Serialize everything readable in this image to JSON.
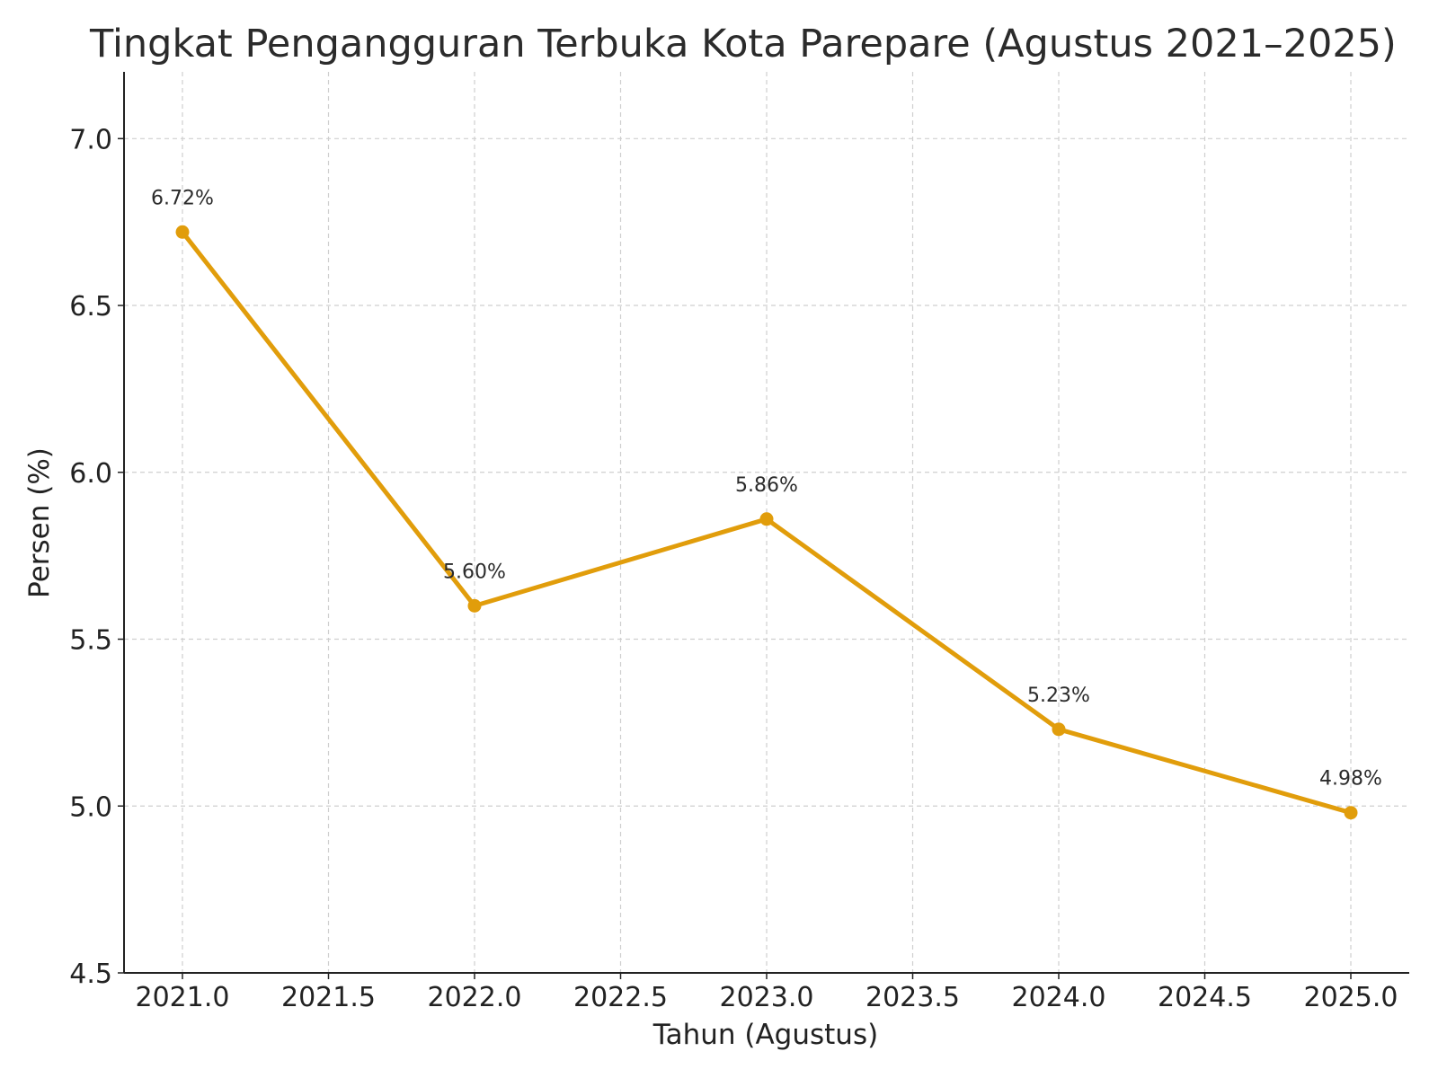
{
  "chart_data": {
    "type": "line",
    "title": "Tingkat Pengangguran Terbuka Kota Parepare (Agustus 2021–2025)",
    "xlabel": "Tahun (Agustus)",
    "ylabel": "Persen (%)",
    "xlim": [
      2020.8,
      2025.2
    ],
    "ylim": [
      4.5,
      7.2
    ],
    "x_ticks": [
      2021.0,
      2021.5,
      2022.0,
      2022.5,
      2023.0,
      2023.5,
      2024.0,
      2024.5,
      2025.0
    ],
    "x_tick_labels": [
      "2021.0",
      "2021.5",
      "2022.0",
      "2022.5",
      "2023.0",
      "2023.5",
      "2024.0",
      "2024.5",
      "2025.0"
    ],
    "y_ticks": [
      4.5,
      5.0,
      5.5,
      6.0,
      6.5,
      7.0
    ],
    "y_tick_labels": [
      "4.5",
      "5.0",
      "5.5",
      "6.0",
      "6.5",
      "7.0"
    ],
    "grid": true,
    "series": [
      {
        "color": "#e19d0b",
        "x": [
          2021,
          2022,
          2023,
          2024,
          2025
        ],
        "values": [
          6.72,
          5.6,
          5.86,
          5.23,
          4.98
        ],
        "data_labels": [
          "6.72%",
          "5.60%",
          "5.86%",
          "5.23%",
          "4.98%"
        ]
      }
    ]
  }
}
